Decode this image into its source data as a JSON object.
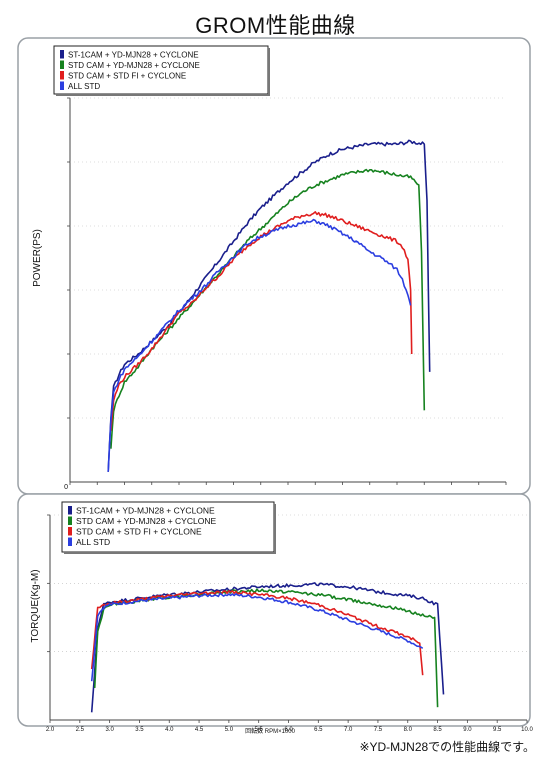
{
  "page": {
    "title": "GROM性能曲線",
    "footnote": "※YD-MJN28での性能曲線です。"
  },
  "colors": {
    "st1_cam_mjn28_cyclone": "#1a1f8c",
    "std_cam_mjn28_cyclone": "#16821f",
    "std_cam_std_fi_cyclone": "#e01e1e",
    "all_std": "#2b3ee0"
  },
  "chart_data": [
    {
      "type": "line",
      "title": "",
      "ylabel": "POWER(PS)",
      "xlabel": "",
      "y_zero_label": "0",
      "grid": true,
      "legend_placement": "top-left",
      "xlim": [
        2.0,
        10.0
      ],
      "ylim": [
        0,
        15
      ],
      "series": [
        {
          "name": "ST-1CAM + YD-MJN28 + CYCLONE",
          "x": [
            2.7,
            2.75,
            2.8,
            2.9,
            3.0,
            3.25,
            3.5,
            3.75,
            4.0,
            4.25,
            4.5,
            4.75,
            5.0,
            5.25,
            5.5,
            5.75,
            6.0,
            6.25,
            6.5,
            6.75,
            7.0,
            7.25,
            7.5,
            7.75,
            8.0,
            8.25,
            8.5,
            8.55,
            8.6
          ],
          "y": [
            0.4,
            2.5,
            3.7,
            4.2,
            4.6,
            5.0,
            5.5,
            6.0,
            6.6,
            7.3,
            8.0,
            8.7,
            9.4,
            10.1,
            10.7,
            11.2,
            11.7,
            12.1,
            12.5,
            12.8,
            13.0,
            13.1,
            13.2,
            13.2,
            13.2,
            13.3,
            13.2,
            11.0,
            4.3
          ]
        },
        {
          "name": "STD CAM + YD-MJN28 + CYCLONE",
          "x": [
            2.75,
            2.8,
            2.9,
            3.0,
            3.25,
            3.5,
            3.75,
            4.0,
            4.25,
            4.5,
            4.75,
            5.0,
            5.25,
            5.5,
            5.75,
            6.0,
            6.25,
            6.5,
            6.75,
            7.0,
            7.25,
            7.5,
            7.75,
            8.0,
            8.25,
            8.4,
            8.45,
            8.5
          ],
          "y": [
            1.3,
            2.8,
            3.4,
            3.9,
            4.5,
            5.2,
            5.8,
            6.4,
            7.0,
            7.6,
            8.2,
            8.8,
            9.4,
            9.9,
            10.4,
            10.9,
            11.3,
            11.6,
            11.8,
            12.0,
            12.1,
            12.2,
            12.1,
            12.0,
            11.9,
            11.6,
            9.0,
            2.8
          ]
        },
        {
          "name": "STD CAM + STD FI + CYCLONE",
          "x": [
            2.75,
            2.8,
            2.9,
            3.0,
            3.25,
            3.5,
            3.75,
            4.0,
            4.25,
            4.5,
            4.75,
            5.0,
            5.25,
            5.5,
            5.75,
            6.0,
            6.25,
            6.5,
            6.75,
            7.0,
            7.25,
            7.5,
            7.75,
            8.0,
            8.1,
            8.2,
            8.25,
            8.27
          ],
          "y": [
            2.0,
            3.2,
            3.8,
            4.1,
            4.6,
            5.2,
            5.9,
            6.6,
            7.0,
            7.6,
            8.1,
            8.7,
            9.2,
            9.6,
            9.9,
            10.2,
            10.4,
            10.5,
            10.4,
            10.2,
            10.0,
            9.8,
            9.6,
            9.4,
            9.2,
            8.7,
            7.5,
            5.0
          ]
        },
        {
          "name": "ALL STD",
          "x": [
            2.7,
            2.75,
            2.8,
            2.9,
            3.0,
            3.25,
            3.5,
            3.75,
            4.0,
            4.25,
            4.5,
            4.75,
            5.0,
            5.25,
            5.5,
            5.75,
            6.0,
            6.25,
            6.5,
            6.75,
            7.0,
            7.25,
            7.5,
            7.75,
            8.0,
            8.1,
            8.2,
            8.25
          ],
          "y": [
            0.4,
            2.4,
            3.5,
            4.0,
            4.4,
            4.9,
            5.5,
            6.1,
            6.7,
            7.2,
            7.7,
            8.3,
            8.8,
            9.3,
            9.6,
            9.8,
            10.0,
            10.1,
            10.2,
            10.0,
            9.7,
            9.4,
            9.0,
            8.7,
            8.3,
            7.9,
            7.3,
            6.9
          ]
        }
      ]
    },
    {
      "type": "line",
      "title": "",
      "ylabel": "TORQUE(Kg-M)",
      "xlabel": "回転数 RPM×1000",
      "grid": true,
      "legend_placement": "top-left",
      "xlim": [
        2.0,
        10.0
      ],
      "ylim": [
        0,
        1.6
      ],
      "x_ticks": [
        "2.0",
        "2.5",
        "3.0",
        "3.5",
        "4.0",
        "4.5",
        "5.0",
        "5.5",
        "6.0",
        "6.5",
        "7.0",
        "7.5",
        "8.0",
        "8.5",
        "9.0",
        "9.5",
        "10.0"
      ],
      "series": [
        {
          "name": "ST-1CAM + YD-MJN28 + CYCLONE",
          "x": [
            2.7,
            2.8,
            2.9,
            3.0,
            3.5,
            4.0,
            4.5,
            5.0,
            5.5,
            6.0,
            6.5,
            7.0,
            7.5,
            8.0,
            8.25,
            8.5,
            8.6
          ],
          "y": [
            0.05,
            0.72,
            0.9,
            0.92,
            0.95,
            0.98,
            1.0,
            1.02,
            1.04,
            1.05,
            1.06,
            1.04,
            1.0,
            0.97,
            0.95,
            0.9,
            0.2
          ]
        },
        {
          "name": "STD CAM + YD-MJN28 + CYCLONE",
          "x": [
            2.75,
            2.8,
            2.9,
            3.0,
            3.5,
            4.0,
            4.5,
            5.0,
            5.5,
            6.0,
            6.5,
            7.0,
            7.5,
            8.0,
            8.25,
            8.45,
            8.5
          ],
          "y": [
            0.25,
            0.7,
            0.86,
            0.9,
            0.93,
            0.96,
            0.98,
            1.0,
            1.01,
            1.0,
            0.98,
            0.94,
            0.9,
            0.85,
            0.82,
            0.8,
            0.1
          ]
        },
        {
          "name": "STD CAM + STD FI + CYCLONE",
          "x": [
            2.7,
            2.8,
            2.9,
            3.0,
            3.5,
            4.0,
            4.5,
            5.0,
            5.5,
            6.0,
            6.5,
            7.0,
            7.5,
            8.0,
            8.2,
            8.25
          ],
          "y": [
            0.4,
            0.88,
            0.9,
            0.91,
            0.94,
            0.97,
            0.99,
            1.0,
            0.98,
            0.95,
            0.9,
            0.82,
            0.73,
            0.65,
            0.6,
            0.35
          ]
        },
        {
          "name": "ALL STD",
          "x": [
            2.7,
            2.8,
            2.9,
            3.0,
            3.5,
            4.0,
            4.5,
            5.0,
            5.5,
            6.0,
            6.5,
            7.0,
            7.5,
            8.0,
            8.25
          ],
          "y": [
            0.3,
            0.82,
            0.88,
            0.9,
            0.93,
            0.95,
            0.97,
            0.98,
            0.96,
            0.92,
            0.86,
            0.78,
            0.7,
            0.62,
            0.56
          ]
        }
      ]
    }
  ]
}
